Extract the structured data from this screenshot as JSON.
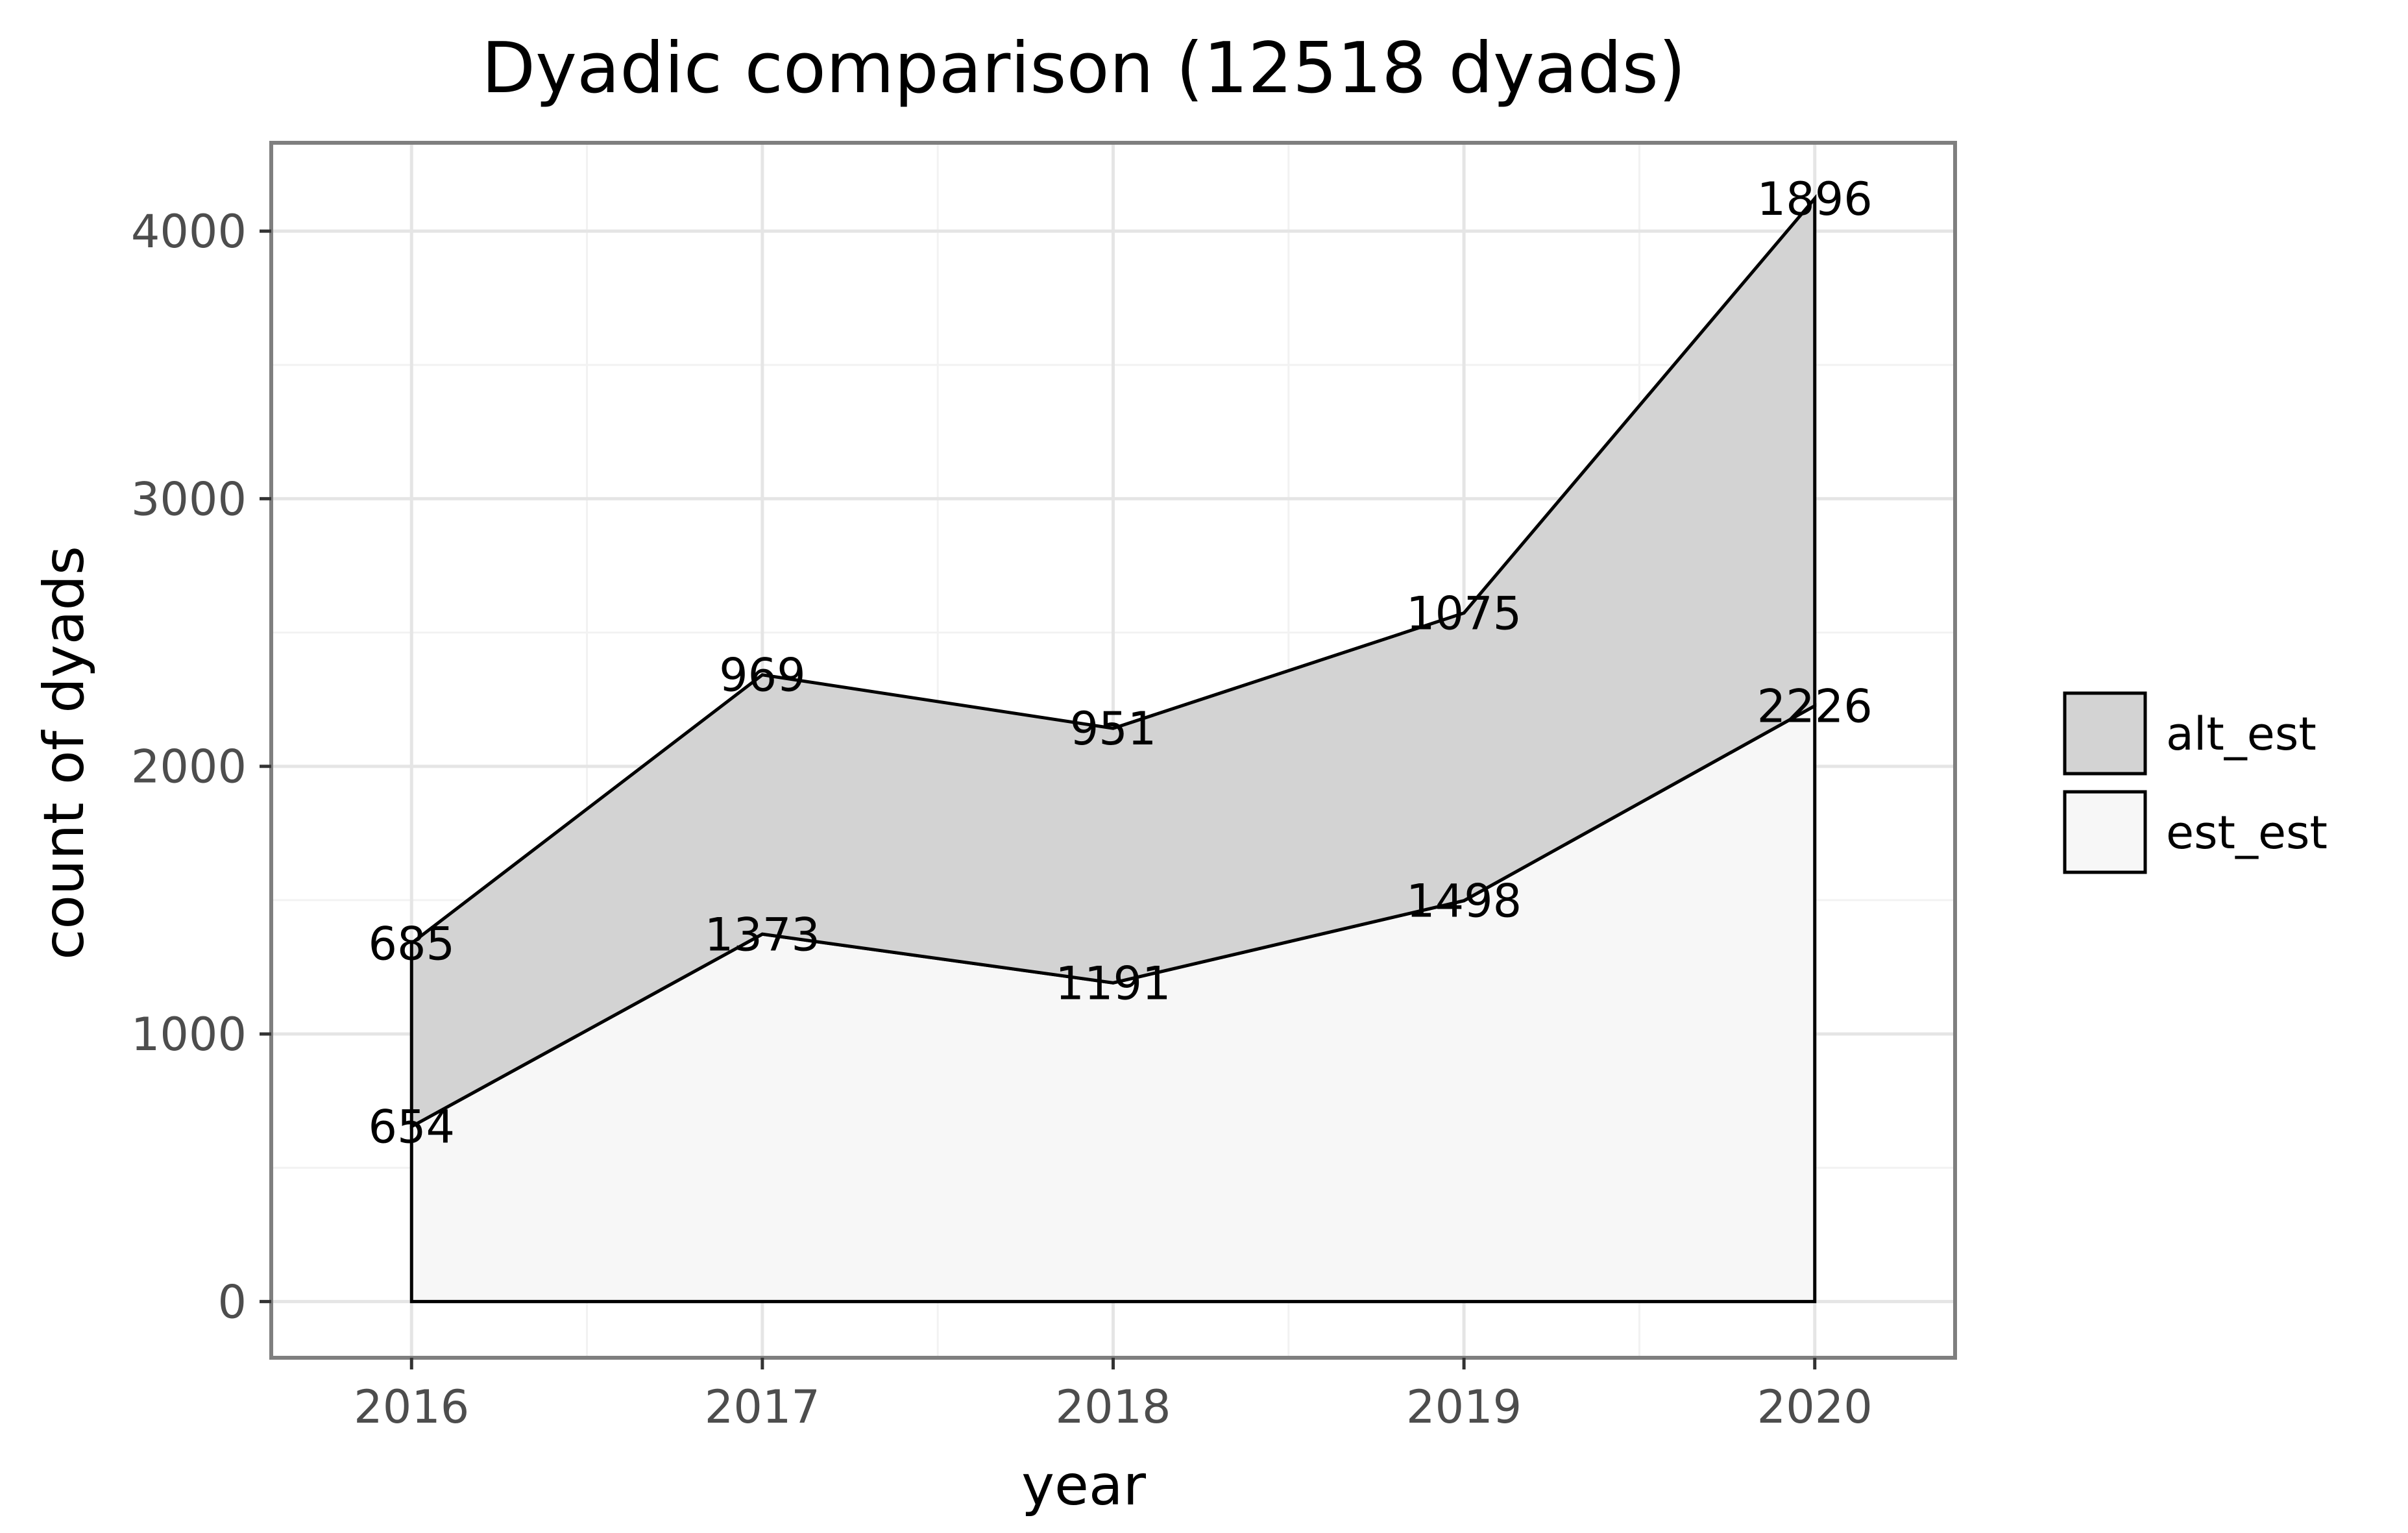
{
  "chart_data": {
    "type": "area",
    "title": "Dyadic comparison (12518 dyads)",
    "xlabel": "year",
    "ylabel": "count of dyads",
    "x": [
      2016,
      2017,
      2018,
      2019,
      2020
    ],
    "xlim": [
      2015.6,
      2020.4
    ],
    "ylim": [
      -210,
      4330
    ],
    "x_ticks": [
      2016,
      2017,
      2018,
      2019,
      2020
    ],
    "x_tick_labels": [
      "2016",
      "2017",
      "2018",
      "2019",
      "2020"
    ],
    "y_ticks": [
      0,
      1000,
      2000,
      3000,
      4000
    ],
    "y_tick_labels": [
      "0",
      "1000",
      "2000",
      "3000",
      "4000"
    ],
    "stacked": true,
    "series": [
      {
        "name": "est_est",
        "values": [
          654,
          1373,
          1191,
          1498,
          2226
        ],
        "color": "#f7f7f7"
      },
      {
        "name": "alt_est",
        "values": [
          685,
          969,
          951,
          1075,
          1896
        ],
        "color": "#d3d3d3"
      }
    ],
    "legend": {
      "position": "right",
      "entries": [
        {
          "name": "alt_est",
          "color": "#d3d3d3"
        },
        {
          "name": "est_est",
          "color": "#f7f7f7"
        }
      ]
    },
    "grid": true,
    "panel_border_color": "#7f7f7f",
    "line_color": "#000000"
  }
}
